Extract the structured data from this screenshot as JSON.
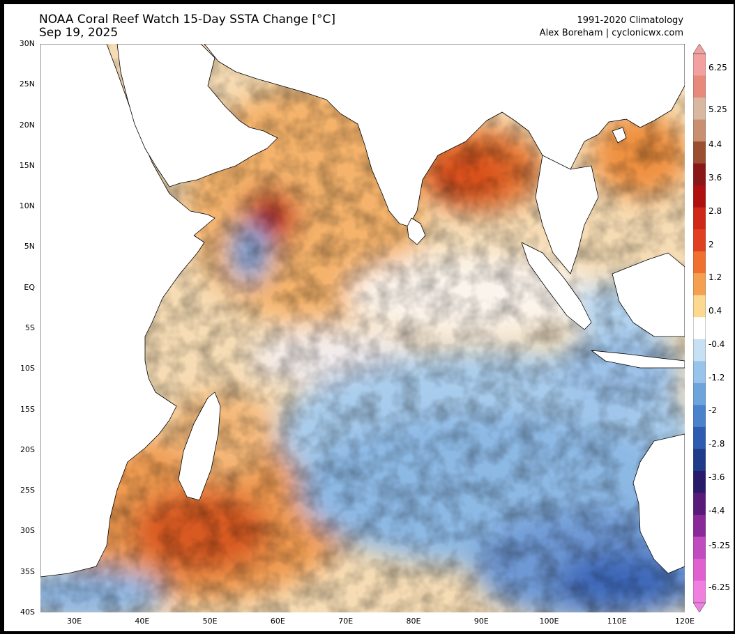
{
  "header": {
    "title": "NOAA Coral Reef Watch 15-Day SSTA Change [°C]",
    "date": "Sep 19, 2025",
    "climatology": "1991-2020 Climatology",
    "credit": "Alex Boreham | cyclonicwx.com"
  },
  "map": {
    "region": "Indian Ocean",
    "lon_range": [
      25,
      120
    ],
    "lat_range": [
      -40,
      30
    ],
    "lat_ticks": [
      "30N",
      "25N",
      "20N",
      "15N",
      "10N",
      "5N",
      "EQ",
      "5S",
      "10S",
      "15S",
      "20S",
      "25S",
      "30S",
      "35S",
      "40S"
    ],
    "lon_ticks": [
      "30E",
      "40E",
      "50E",
      "60E",
      "70E",
      "80E",
      "90E",
      "100E",
      "110E",
      "120E"
    ],
    "land_color": "#ffffff",
    "coastline_color": "#000000"
  },
  "colorbar": {
    "min": -6.6,
    "max": 6.6,
    "labels": [
      "6.25",
      "5.25",
      "4.4",
      "3.6",
      "2.8",
      "2",
      "1.2",
      "0.4",
      "-0.4",
      "-1.2",
      "-2",
      "-2.8",
      "-3.6",
      "-4.4",
      "-5.25",
      "-6.25"
    ],
    "colors_top_to_bottom": [
      "#f2a0a0",
      "#e88a7a",
      "#d8b8a0",
      "#c89070",
      "#9a5030",
      "#8a1818",
      "#b01010",
      "#d02818",
      "#e04020",
      "#f07030",
      "#f4a050",
      "#fcd890",
      "#ffffff",
      "#c8e0f4",
      "#98c4ec",
      "#6ea4dc",
      "#4a82cc",
      "#2e5cb0",
      "#1e3c8a",
      "#2a1a6a",
      "#5a1a7a",
      "#8a2a9a",
      "#c04cc0",
      "#e060d0",
      "#f080e0"
    ]
  }
}
